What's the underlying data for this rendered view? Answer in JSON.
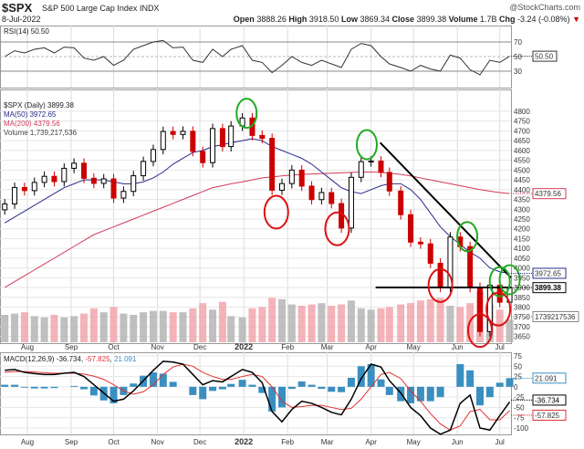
{
  "header": {
    "symbol": "$SPX",
    "name": "S&P 500 Large Cap Index",
    "exchange": "INDX",
    "date": "8-Jul-2022",
    "brand": "@StockCharts.com",
    "open_label": "Open",
    "open": "3888.26",
    "high_label": "High",
    "high": "3918.50",
    "low_label": "Low",
    "low": "3869.34",
    "close_label": "Close",
    "close": "3899.38",
    "volume_label": "Volume",
    "volume": "1.7B",
    "chg_label": "Chg",
    "chg": "-3.24 (-0.08%)",
    "chg_arrow": "▼"
  },
  "legends": {
    "rsi": "RSI(14) 50.50",
    "price": "$SPX (Daily) 3899.38",
    "ma50": "MA(50) 3972.65",
    "ma200": "MA(200) 4379.56",
    "volume": "Volume 1,739,217,536",
    "macd_prefix": "MACD(12,26,9) ",
    "macd": "-36.734",
    "signal": "-57.825",
    "hist": "21.091"
  },
  "colors": {
    "up": "#000000",
    "down": "#cc0000",
    "ma50": "#2a2a8c",
    "ma200": "#d23a5a",
    "volume_up": "#b0b0b0",
    "volume_down": "#f0a0a8",
    "macd": "#000000",
    "signal": "#e03030",
    "hist": "#3a8fc0",
    "green_circle": "#22aa22",
    "red_circle": "#dd1111",
    "trendline": "#000000"
  },
  "chart_data": [
    {
      "type": "line",
      "title": "RSI(14)",
      "ylim": [
        10,
        90
      ],
      "yticks": [
        30,
        50,
        70
      ],
      "grid": true,
      "values": [
        50,
        58,
        55,
        60,
        62,
        55,
        63,
        62,
        48,
        45,
        50,
        38,
        45,
        60,
        65,
        70,
        72,
        62,
        63,
        45,
        42,
        60,
        50,
        60,
        65,
        45,
        42,
        28,
        38,
        50,
        42,
        38,
        45,
        40,
        35,
        60,
        68,
        65,
        50,
        40,
        35,
        30,
        38,
        33,
        30,
        52,
        48,
        32,
        25,
        45,
        42,
        50.5
      ],
      "last_label": "50.50"
    },
    {
      "type": "candlestick",
      "title": "$SPX (Daily)",
      "ylim": [
        3630,
        4860
      ],
      "yticks": [
        3650,
        3700,
        3750,
        3800,
        3850,
        3900,
        3950,
        4000,
        4050,
        4100,
        4150,
        4200,
        4250,
        4300,
        4350,
        4400,
        4450,
        4500,
        4550,
        4600,
        4650,
        4700,
        4750,
        4800
      ],
      "dates": [
        "2021-07-16",
        "2021-07-23",
        "2021-07-30",
        "2021-08-06",
        "2021-08-13",
        "2021-08-20",
        "2021-08-27",
        "2021-09-03",
        "2021-09-10",
        "2021-09-17",
        "2021-09-24",
        "2021-10-01",
        "2021-10-08",
        "2021-10-15",
        "2021-10-22",
        "2021-10-29",
        "2021-11-05",
        "2021-11-12",
        "2021-11-19",
        "2021-11-26",
        "2021-12-03",
        "2021-12-10",
        "2021-12-17",
        "2021-12-23",
        "2021-12-31",
        "2022-01-07",
        "2022-01-14",
        "2022-01-21",
        "2022-01-28",
        "2022-02-04",
        "2022-02-11",
        "2022-02-18",
        "2022-02-25",
        "2022-03-04",
        "2022-03-11",
        "2022-03-18",
        "2022-03-25",
        "2022-04-01",
        "2022-04-08",
        "2022-04-14",
        "2022-04-22",
        "2022-04-29",
        "2022-05-06",
        "2022-05-13",
        "2022-05-20",
        "2022-05-27",
        "2022-06-03",
        "2022-06-10",
        "2022-06-17",
        "2022-06-24",
        "2022-07-01",
        "2022-07-08"
      ],
      "close": [
        4327,
        4411,
        4395,
        4437,
        4468,
        4441,
        4509,
        4535,
        4458,
        4432,
        4455,
        4357,
        4391,
        4471,
        4544,
        4605,
        4697,
        4682,
        4698,
        4595,
        4538,
        4712,
        4620,
        4725,
        4766,
        4677,
        4662,
        4397,
        4431,
        4500,
        4418,
        4349,
        4385,
        4329,
        4204,
        4463,
        4543,
        4546,
        4488,
        4393,
        4272,
        4132,
        4123,
        4024,
        3901,
        4158,
        4109,
        3901,
        3675,
        3912,
        3825,
        3899.38
      ],
      "ma50": [
        4230,
        4260,
        4290,
        4320,
        4350,
        4380,
        4410,
        4430,
        4450,
        4450,
        4450,
        4440,
        4430,
        4430,
        4440,
        4460,
        4490,
        4530,
        4560,
        4590,
        4600,
        4620,
        4630,
        4640,
        4650,
        4660,
        4650,
        4620,
        4600,
        4580,
        4560,
        4530,
        4490,
        4450,
        4410,
        4390,
        4380,
        4400,
        4420,
        4430,
        4430,
        4400,
        4350,
        4280,
        4210,
        4160,
        4120,
        4080,
        4050,
        4000,
        3980,
        3972.65
      ],
      "ma200": [
        3900,
        3930,
        3960,
        3990,
        4020,
        4050,
        4080,
        4110,
        4140,
        4170,
        4190,
        4210,
        4230,
        4250,
        4270,
        4290,
        4310,
        4330,
        4350,
        4370,
        4390,
        4410,
        4420,
        4430,
        4440,
        4450,
        4460,
        4465,
        4470,
        4475,
        4478,
        4480,
        4482,
        4484,
        4486,
        4488,
        4490,
        4490,
        4488,
        4484,
        4478,
        4470,
        4460,
        4450,
        4440,
        4430,
        4420,
        4410,
        4400,
        4392,
        4385,
        4379.56
      ],
      "volume_billions": [
        2.1,
        2.2,
        2.3,
        2.0,
        1.9,
        2.1,
        1.9,
        2.0,
        2.2,
        2.6,
        2.3,
        2.7,
        2.2,
        2.1,
        2.3,
        2.4,
        2.4,
        2.3,
        2.3,
        2.6,
        3.0,
        2.5,
        3.1,
        2.0,
        1.9,
        2.6,
        2.7,
        3.4,
        3.3,
        2.9,
        2.8,
        2.9,
        3.0,
        2.8,
        2.9,
        3.2,
        2.6,
        2.5,
        2.6,
        2.7,
        2.9,
        3.0,
        3.2,
        3.3,
        3.4,
        2.8,
        2.7,
        3.0,
        3.9,
        2.9,
        2.5,
        1.74
      ],
      "last_labels": {
        "ma200": "4379.56",
        "ma50": "3972.65",
        "close": "3899.38",
        "volume": "1739217536"
      },
      "annotations": {
        "green_circles": [
          [
            "2022-01-03",
            4790
          ],
          [
            "2022-03-29",
            4630
          ],
          [
            "2022-06-08",
            4160
          ],
          [
            "2022-07-01",
            3930
          ],
          [
            "2022-07-08",
            3940
          ]
        ],
        "red_circles": [
          [
            "2022-01-24",
            4285
          ],
          [
            "2022-03-08",
            4200
          ],
          [
            "2022-05-20",
            3910
          ],
          [
            "2022-06-17",
            3680
          ],
          [
            "2022-06-30",
            3790
          ]
        ],
        "trendline": [
          [
            "2022-04-01",
            4640
          ],
          [
            "2022-07-09",
            3950
          ]
        ],
        "horizontal_line": {
          "from": "2022-04-01",
          "to": "2022-07-09",
          "price": 3900
        }
      }
    },
    {
      "type": "line",
      "title": "MACD(12,26,9)",
      "ylim": [
        -125,
        85
      ],
      "yticks": [
        75,
        50,
        25,
        0,
        -25,
        -50,
        -75,
        -100
      ],
      "grid": true,
      "macd": [
        40,
        42,
        35,
        32,
        30,
        30,
        33,
        35,
        25,
        5,
        -15,
        -35,
        -30,
        -10,
        15,
        40,
        62,
        60,
        55,
        30,
        5,
        15,
        12,
        25,
        42,
        35,
        10,
        -60,
        -85,
        -55,
        -35,
        -40,
        -50,
        -62,
        -68,
        -30,
        20,
        55,
        48,
        15,
        -15,
        -50,
        -70,
        -100,
        -115,
        -105,
        -40,
        -20,
        -100,
        -105,
        -70,
        -36.734
      ],
      "signal": [
        35,
        37,
        37,
        36,
        34,
        33,
        33,
        33,
        31,
        26,
        18,
        5,
        -10,
        -18,
        -12,
        5,
        30,
        48,
        55,
        50,
        35,
        25,
        18,
        18,
        25,
        30,
        25,
        0,
        -35,
        -50,
        -48,
        -45,
        -45,
        -50,
        -55,
        -52,
        -30,
        0,
        30,
        35,
        20,
        -10,
        -35,
        -65,
        -90,
        -105,
        -95,
        -60,
        -55,
        -80,
        -80,
        -57.825
      ],
      "last_labels": {
        "macd": "-36.734",
        "signal": "-57.825",
        "hist": "21.091"
      }
    }
  ],
  "x_axis": {
    "labels": [
      [
        "Aug",
        "2021-08-01"
      ],
      [
        "Sep",
        "2021-09-01"
      ],
      [
        "Oct",
        "2021-10-01"
      ],
      [
        "Nov",
        "2021-11-01"
      ],
      [
        "Dec",
        "2021-12-01"
      ],
      [
        "2022",
        "2022-01-01"
      ],
      [
        "Feb",
        "2022-02-01"
      ],
      [
        "Mar",
        "2022-03-01"
      ],
      [
        "Apr",
        "2022-04-01"
      ],
      [
        "May",
        "2022-05-01"
      ],
      [
        "Jun",
        "2022-06-01"
      ],
      [
        "Jul",
        "2022-07-01"
      ]
    ]
  }
}
